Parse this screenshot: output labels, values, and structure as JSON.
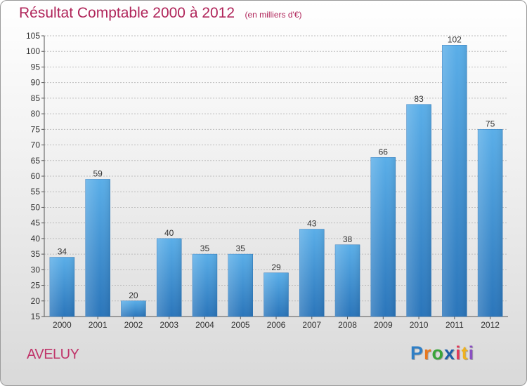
{
  "header": {
    "title": "Résultat Comptable 2000 à 2012",
    "subtitle": "(en milliers d'€)"
  },
  "footer": {
    "commune": "AVELUY",
    "logo_letters": [
      "P",
      "r",
      "o",
      "x",
      "i",
      "t",
      "i"
    ],
    "logo_colors": [
      "#2f7fc6",
      "#e8781e",
      "#3aa53a",
      "#1f5fa8",
      "#e23b5a",
      "#f0b21d",
      "#8a4fc2"
    ]
  },
  "chart_data": {
    "type": "bar",
    "title": "Résultat Comptable 2000 à 2012",
    "subtitle": "(en milliers d'€)",
    "categories": [
      "2000",
      "2001",
      "2002",
      "2003",
      "2004",
      "2005",
      "2006",
      "2007",
      "2008",
      "2009",
      "2010",
      "2011",
      "2012"
    ],
    "values": [
      34,
      59,
      20,
      40,
      35,
      35,
      29,
      43,
      38,
      66,
      83,
      102,
      75
    ],
    "value_labels": [
      "34",
      "59",
      "20",
      "40",
      "35",
      "35",
      "29",
      "43",
      "38",
      "66",
      "83",
      "102",
      "75"
    ],
    "y_ticks": [
      "15",
      "20",
      "25",
      "30",
      "35",
      "40",
      "45",
      "50",
      "55",
      "60",
      "65",
      "70",
      "75",
      "80",
      "85",
      "90",
      "95",
      "100",
      "105"
    ],
    "ylim": [
      15,
      105
    ],
    "xlabel": "",
    "ylabel": "",
    "grid": true,
    "bar_color": "#3a8fd8",
    "bar_color_light": "#5aaee8",
    "bar_color_dark": "#2a75ba"
  }
}
